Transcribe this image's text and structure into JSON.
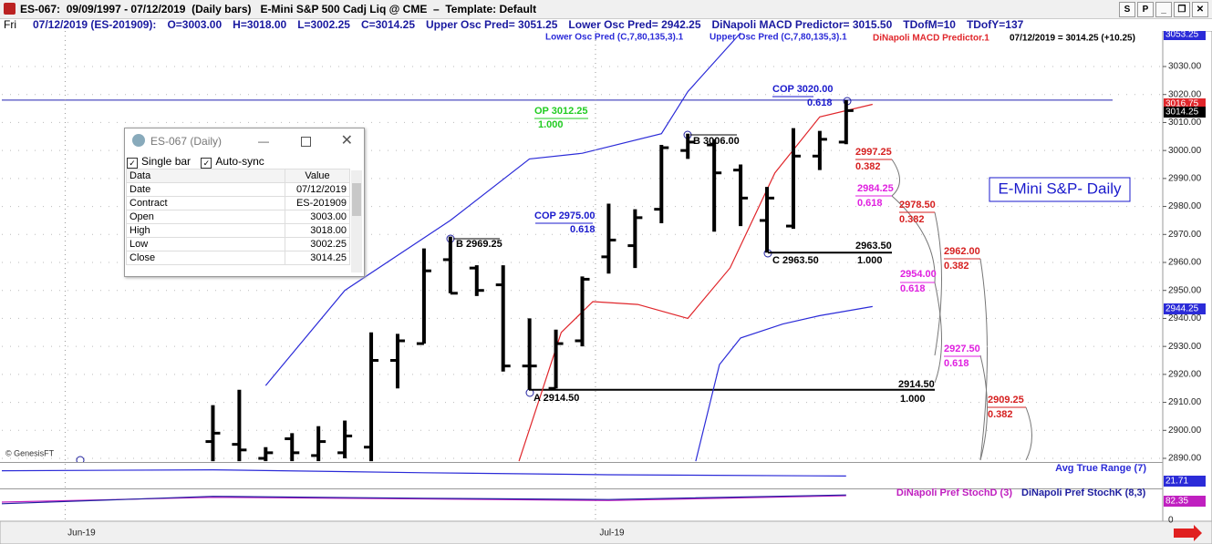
{
  "window": {
    "title": "ES-067:  09/09/1997 - 07/12/2019  (Daily bars)   E-Mini S&P 500 Cadj Liq @ CME  –  Template: Default",
    "buttons": [
      "S",
      "P"
    ]
  },
  "info_bar": {
    "day": "Fri",
    "items": [
      "07/12/2019 (ES-201909):",
      "O=3003.00",
      "H=3018.00",
      "L=3002.25",
      "C=3014.25",
      "Upper Osc Pred= 3051.25",
      "Lower Osc Pred= 2942.25",
      "DiNapoli MACD Predictor= 3015.50",
      "TDofM=10",
      "TDofY=137"
    ]
  },
  "data_window": {
    "title": "ES-067 (Daily)",
    "options": [
      "Single bar",
      "Auto-sync"
    ],
    "columns": [
      "Data",
      "Value"
    ],
    "rows": [
      [
        "Date",
        "07/12/2019"
      ],
      [
        "Contract",
        "ES-201909"
      ],
      [
        "Open",
        "3003.00"
      ],
      [
        "High",
        "3018.00"
      ],
      [
        "Low",
        "3002.25"
      ],
      [
        "Close",
        "3014.25"
      ]
    ]
  },
  "chart_data": {
    "type": "ohlc",
    "label_box": "E-Mini S&P- Daily",
    "credit": "© GenesisFT",
    "legend_extra": "07/12/2019 = 3014.25 (+10.25)",
    "color": "#000000",
    "x": [
      5,
      6,
      7,
      8,
      9,
      10,
      11,
      12,
      13,
      14,
      15,
      16,
      17,
      18,
      19,
      20,
      21,
      22,
      23,
      24,
      25,
      26,
      27,
      28,
      29
    ],
    "open": [
      2896,
      2895,
      2890,
      2897,
      2891,
      2892,
      2894,
      2925,
      2931,
      2961,
      2958,
      2952,
      2923,
      2915,
      2932,
      2962,
      2966,
      2979,
      3000,
      3002,
      2993,
      2975,
      2973,
      2998,
      3003
    ],
    "high": [
      2909,
      2914.5,
      2894,
      2899,
      2901.5,
      2903.5,
      2935,
      2934.5,
      2965,
      2969.25,
      2959,
      2959,
      2940,
      2936,
      2955,
      2981,
      2979,
      3002,
      3006,
      3004,
      2995,
      2987,
      3008,
      3007,
      3018
    ],
    "low": [
      2889,
      2889,
      2889,
      2889,
      2889,
      2890,
      2889,
      2915,
      2931,
      2949,
      2948,
      2921,
      2914.5,
      2915,
      2930,
      2956,
      2958,
      2974,
      2997,
      2971,
      2973,
      2963.5,
      2972,
      2993,
      3002.25
    ],
    "close": [
      2899,
      2893,
      2892,
      2892,
      2896,
      2898,
      2925,
      2932,
      2957,
      2949,
      2950,
      2923,
      2923,
      2931,
      2954,
      2968,
      2976,
      3001,
      3003,
      2992,
      2983,
      2983,
      2998,
      3004,
      3014.25
    ],
    "series": [
      {
        "name": "Upper Osc Pred (C,7,80,135,3).1",
        "color": "#2b2bd8",
        "x": [
          7,
          10,
          14,
          17,
          19,
          22,
          23,
          25
        ],
        "values": [
          2916,
          2950,
          2975,
          2997,
          2999,
          3006,
          3021,
          3042
        ]
      },
      {
        "name": "Lower Osc Pred (C,7,80,135,3).1",
        "color": "#2b2bd8",
        "x": [
          23.3,
          24.2,
          25,
          26.6,
          28,
          30
        ],
        "values": [
          2889,
          2923.5,
          2933,
          2938,
          2941,
          2944.25
        ]
      },
      {
        "name": "DiNapoli MACD Predictor.1",
        "color": "#e0262b",
        "x": [
          16.6,
          17.3,
          18.2,
          19.4,
          21.1,
          23,
          24.6,
          26.3,
          28,
          30
        ],
        "values": [
          2889,
          2909,
          2935,
          2946,
          2945,
          2940,
          2958,
          2992,
          3012,
          3016.5
        ]
      }
    ],
    "levels": [
      {
        "value": 3018,
        "color": "#2020b0"
      },
      {
        "value": 2963.5,
        "color": "#000000"
      },
      {
        "value": 2914.5,
        "color": "#000000"
      }
    ],
    "xlim": [
      -3,
      41
    ],
    "ylim": [
      2888.7,
      3042.7
    ],
    "xticks": [
      {
        "value": -0.6,
        "label": "Jun-19"
      },
      {
        "value": 19.5,
        "label": "Jul-19"
      }
    ],
    "yticks": [
      {
        "value": 2890,
        "label": "2890.00"
      },
      {
        "value": 2900,
        "label": "2900.00"
      },
      {
        "value": 2910,
        "label": "2910.00"
      },
      {
        "value": 2920,
        "label": "2920.00"
      },
      {
        "value": 2930,
        "label": "2930.00"
      },
      {
        "value": 2940,
        "label": "2940.00"
      },
      {
        "value": 2950,
        "label": "2950.00"
      },
      {
        "value": 2960,
        "label": "2960.00"
      },
      {
        "value": 2970,
        "label": "2970.00"
      },
      {
        "value": 2980,
        "label": "2980.00"
      },
      {
        "value": 2990,
        "label": "2990.00"
      },
      {
        "value": 3000,
        "label": "3000.00"
      },
      {
        "value": 3010,
        "label": "3010.00"
      },
      {
        "value": 3020,
        "label": "3020.00"
      },
      {
        "value": 3030,
        "label": "3030.00"
      }
    ],
    "grid": true,
    "annotations": [
      {
        "text": "OP 3012.25",
        "color": "#22cc22"
      },
      {
        "text": "1.000",
        "color": "#22cc22"
      },
      {
        "text": "COP 3020.00",
        "color": "#1a1acc"
      },
      {
        "text": "0.618",
        "color": "#1a1acc"
      },
      {
        "text": "B 3006.00",
        "color": "#000000"
      },
      {
        "text": "B 2969.25",
        "color": "#000000"
      },
      {
        "text": "COP 2975.00",
        "color": "#1a1acc"
      },
      {
        "text": "0.618",
        "color": "#1a1acc"
      },
      {
        "text": "C 2963.50",
        "color": "#000000"
      },
      {
        "text": "2963.50",
        "color": "#000000"
      },
      {
        "text": "1.000",
        "color": "#000000"
      },
      {
        "text": "A 2914.50",
        "color": "#000000"
      },
      {
        "text": "2914.50",
        "color": "#000000"
      },
      {
        "text": "1.000",
        "color": "#000000"
      },
      {
        "text": "2997.25",
        "color": "#d62020"
      },
      {
        "text": "0.382",
        "color": "#d62020"
      },
      {
        "text": "2984.25",
        "color": "#e020e0"
      },
      {
        "text": "0.618",
        "color": "#e020e0"
      },
      {
        "text": "2978.50",
        "color": "#d62020"
      },
      {
        "text": "0.382",
        "color": "#d62020"
      },
      {
        "text": "2962.00",
        "color": "#d62020"
      },
      {
        "text": "0.382",
        "color": "#d62020"
      },
      {
        "text": "2954.00",
        "color": "#e020e0"
      },
      {
        "text": "0.618",
        "color": "#e020e0"
      },
      {
        "text": "2927.50",
        "color": "#e020e0"
      },
      {
        "text": "0.618",
        "color": "#e020e0"
      },
      {
        "text": "2909.25",
        "color": "#d62020"
      },
      {
        "text": "0.382",
        "color": "#d62020"
      }
    ],
    "axis_tags": [
      {
        "label": "3053.25",
        "color": "#2b2bd8"
      },
      {
        "label": "3016.75",
        "color": "#e0262b"
      },
      {
        "label": "3014.25",
        "color": "#000000"
      },
      {
        "label": "2944.25",
        "color": "#2b2bd8"
      },
      {
        "label": "21.71",
        "color": "#2b2bd8"
      },
      {
        "label": "82.35",
        "color": "#c020c0"
      }
    ],
    "indicators": [
      {
        "ylim": [
          10,
          35
        ],
        "series": [
          {
            "name": "Avg True Range (7)",
            "color": "#2b2bd8",
            "x": [
              -3,
              5,
              13,
              20,
              29
            ],
            "values": [
              27,
              28,
              25,
              23,
              21.71
            ]
          }
        ]
      },
      {
        "ylim": [
          0,
          100
        ],
        "yticks": [
          0
        ],
        "series": [
          {
            "name": "DiNapoli Pref StochD (3)",
            "color": "#c020c0",
            "x": [
              -3,
              5,
              13,
              20,
              29
            ],
            "values": [
              60,
              75,
              70,
              65,
              80
            ]
          },
          {
            "name": "DiNapoli Pref StochK (8,3)",
            "color": "#2020a0",
            "x": [
              -3,
              5,
              13,
              20,
              29
            ],
            "values": [
              55,
              78,
              72,
              68,
              82.35
            ]
          }
        ]
      }
    ]
  }
}
